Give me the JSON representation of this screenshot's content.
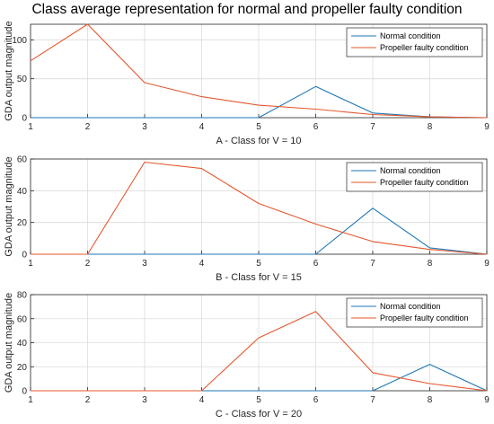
{
  "figure": {
    "title": "Class average representation for normal and propeller faulty condition"
  },
  "colors": {
    "normal": "#1f77b4",
    "faulty": "#e4572e",
    "grid": "#dcdcdc",
    "axis": "#262626"
  },
  "chart_data": [
    {
      "type": "line",
      "xlabel": "A - Class for V = 10",
      "ylabel": "GDA output magnitude",
      "x": [
        1,
        2,
        3,
        4,
        5,
        6,
        7,
        8,
        9
      ],
      "xlim": [
        1,
        9
      ],
      "ylim": [
        0,
        120
      ],
      "yticks": [
        0,
        50,
        100
      ],
      "grid": true,
      "legend_position": "top-right",
      "series": [
        {
          "name": "Normal condition",
          "color_key": "normal",
          "values": [
            0,
            0,
            0,
            0,
            0,
            40,
            6,
            1,
            0
          ]
        },
        {
          "name": "Propeller faulty condition",
          "color_key": "faulty",
          "values": [
            73,
            120,
            45,
            27,
            16,
            11,
            4,
            1,
            0
          ]
        }
      ]
    },
    {
      "type": "line",
      "xlabel": "B - Class  for V = 15",
      "ylabel": "GDA output magnitude",
      "x": [
        1,
        2,
        3,
        4,
        5,
        6,
        7,
        8,
        9
      ],
      "xlim": [
        1,
        9
      ],
      "ylim": [
        0,
        60
      ],
      "yticks": [
        0,
        20,
        40,
        60
      ],
      "grid": true,
      "legend_position": "top-right",
      "series": [
        {
          "name": "Normal condition",
          "color_key": "normal",
          "values": [
            0,
            0,
            0,
            0,
            0,
            0,
            29,
            4,
            0
          ]
        },
        {
          "name": "Propeller faulty condition",
          "color_key": "faulty",
          "values": [
            0,
            0,
            58,
            54,
            32,
            19,
            8,
            3,
            0
          ]
        }
      ]
    },
    {
      "type": "line",
      "xlabel": "C - Class for V = 20",
      "ylabel": "GDA output magnitude",
      "x": [
        1,
        2,
        3,
        4,
        5,
        6,
        7,
        8,
        9
      ],
      "xlim": [
        1,
        9
      ],
      "ylim": [
        0,
        80
      ],
      "yticks": [
        0,
        20,
        40,
        60,
        80
      ],
      "grid": true,
      "legend_position": "top-right",
      "series": [
        {
          "name": "Normal condition",
          "color_key": "normal",
          "values": [
            0,
            0,
            0,
            0,
            0,
            0,
            0,
            22,
            0
          ]
        },
        {
          "name": "Propeller faulty condition",
          "color_key": "faulty",
          "values": [
            0,
            0,
            0,
            0,
            44,
            66,
            15,
            6,
            0
          ]
        }
      ]
    }
  ]
}
